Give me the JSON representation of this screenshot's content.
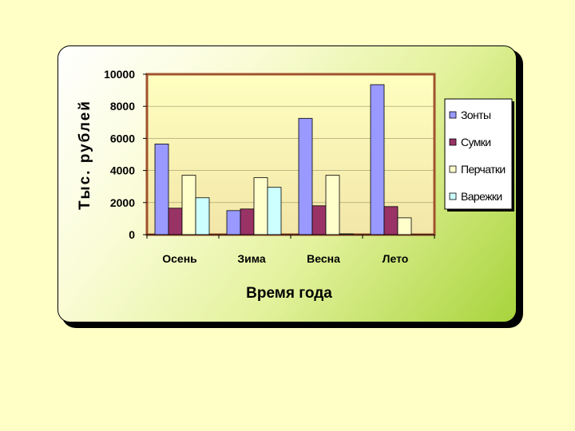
{
  "chart_data": {
    "type": "bar",
    "title": "",
    "xlabel": "Время года",
    "ylabel": "Тыс. рублей",
    "categories": [
      "Осень",
      "Зима",
      "Весна",
      "Лето"
    ],
    "series": [
      {
        "name": "Зонты",
        "values": [
          5650,
          1500,
          7250,
          9350
        ]
      },
      {
        "name": "Сумки",
        "values": [
          1650,
          1600,
          1800,
          1750
        ]
      },
      {
        "name": "Перчатки",
        "values": [
          3700,
          3550,
          3700,
          1050
        ]
      },
      {
        "name": "Варежки",
        "values": [
          2300,
          2950,
          50,
          0
        ]
      }
    ],
    "ylim": [
      0,
      10000
    ],
    "yticks": [
      0,
      2000,
      4000,
      6000,
      8000,
      10000
    ],
    "grid": true,
    "legend": "right",
    "colors": {
      "series": [
        "#9999ff",
        "#993366",
        "#ffffcc",
        "#ccffff"
      ],
      "plot_border": "#a0522d",
      "plot_background_top": "#ffffc0",
      "plot_background_bottom": "#f2e6a8"
    }
  }
}
